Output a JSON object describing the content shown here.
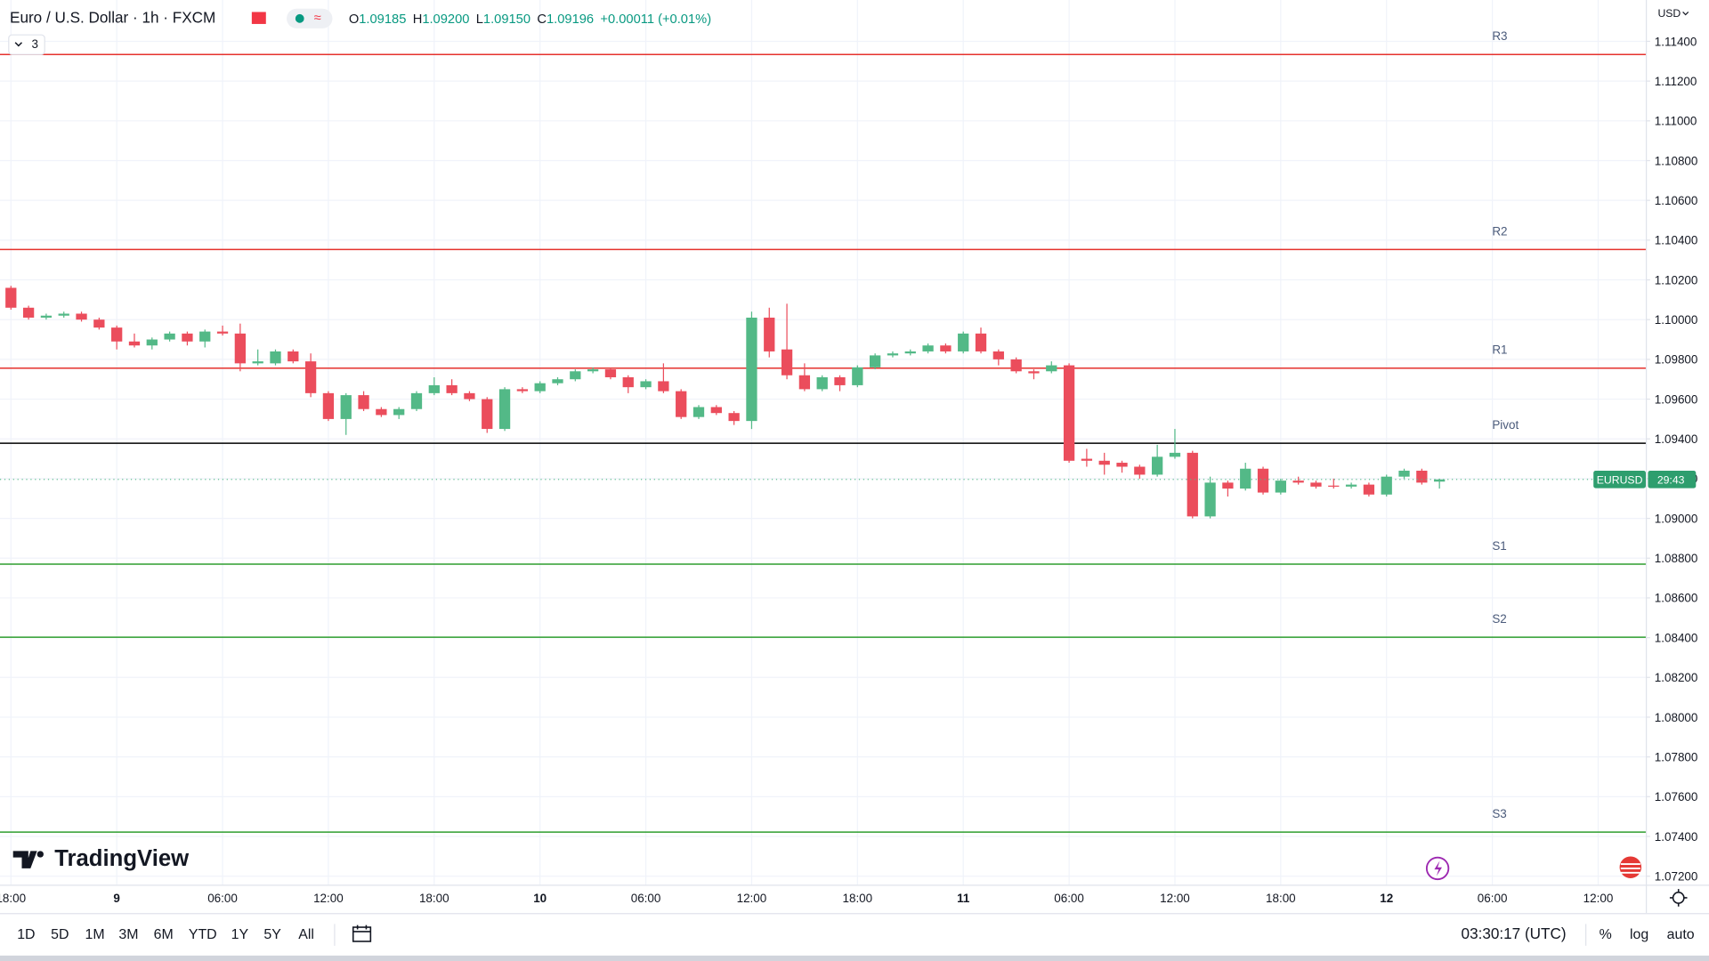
{
  "chart_data": {
    "type": "candlestick",
    "title": "Euro / U.S. Dollar · 1h · FXCM",
    "ohlc": [
      {
        "label": "O",
        "value": "1.09185"
      },
      {
        "label": "H",
        "value": "1.09200"
      },
      {
        "label": "L",
        "value": "1.09150"
      },
      {
        "label": "C",
        "value": "1.09196"
      }
    ],
    "change": "+0.00011 (+0.01%)",
    "up_color": "#53b987",
    "down_color": "#eb4d5c",
    "open": [
      1.1016,
      1.1006,
      1.1001,
      1.1002,
      1.1003,
      1.1,
      1.0996,
      1.0989,
      1.0987,
      1.099,
      1.0993,
      1.0989,
      1.0994,
      1.0993,
      1.0978,
      1.0978,
      1.0984,
      1.0979,
      1.0963,
      1.095,
      1.0962,
      1.0955,
      1.0952,
      1.0955,
      1.0963,
      1.0967,
      1.0963,
      1.096,
      1.0945,
      1.0965,
      1.0964,
      1.0968,
      1.097,
      1.0974,
      1.0975,
      1.0971,
      1.0966,
      1.0969,
      1.0964,
      1.0951,
      1.0956,
      1.0953,
      1.0949,
      1.1001,
      1.0985,
      1.0972,
      1.0965,
      1.0971,
      1.0967,
      1.0976,
      1.0982,
      1.0983,
      1.0984,
      1.0987,
      1.0984,
      1.0993,
      1.0984,
      1.098,
      1.0974,
      1.0974,
      1.0977,
      1.093,
      1.0929,
      1.0928,
      1.0926,
      1.0922,
      1.0931,
      1.0933,
      1.0901,
      1.0918,
      1.0915,
      1.0925,
      1.0913,
      1.0919,
      1.0918,
      1.09165,
      1.0916,
      1.0917,
      1.0912,
      1.0921,
      1.0924,
      1.09185
    ],
    "high": [
      1.1017,
      1.1007,
      1.1003,
      1.1004,
      1.1004,
      1.1001,
      1.0997,
      1.0993,
      1.0991,
      1.0994,
      1.0994,
      1.0995,
      1.0997,
      1.0998,
      1.0985,
      1.0985,
      1.0985,
      1.0983,
      1.0964,
      1.0963,
      1.0964,
      1.0956,
      1.0956,
      1.0964,
      1.0971,
      1.097,
      1.0964,
      1.0961,
      1.0966,
      1.0966,
      1.0969,
      1.0971,
      1.0975,
      1.0976,
      1.0976,
      1.0972,
      1.097,
      1.0978,
      1.0965,
      1.0957,
      1.0957,
      1.0954,
      1.1004,
      1.1006,
      1.1008,
      1.0978,
      1.0972,
      1.0972,
      1.0977,
      1.0983,
      1.0984,
      1.0985,
      1.0988,
      1.0988,
      1.0994,
      1.0996,
      1.0985,
      1.0981,
      1.0975,
      1.0979,
      1.0978,
      1.0935,
      1.0933,
      1.0929,
      1.0927,
      1.0937,
      1.0945,
      1.0934,
      1.0921,
      1.0919,
      1.0928,
      1.0926,
      1.092,
      1.0921,
      1.0919,
      1.092,
      1.0918,
      1.0918,
      1.0922,
      1.0925,
      1.0925,
      1.092
    ],
    "low": [
      1.1005,
      1.1,
      1.1,
      1.1001,
      1.0999,
      1.0995,
      1.0985,
      1.0986,
      1.0985,
      1.0989,
      1.0987,
      1.0986,
      1.0992,
      1.0974,
      1.0977,
      1.0977,
      1.0978,
      1.0961,
      1.0949,
      1.0942,
      1.0954,
      1.0951,
      1.095,
      1.0954,
      1.0962,
      1.0962,
      1.0959,
      1.0943,
      1.0944,
      1.0963,
      1.0963,
      1.0967,
      1.0969,
      1.0973,
      1.097,
      1.0963,
      1.0965,
      1.0963,
      1.095,
      1.095,
      1.0952,
      1.0947,
      1.0945,
      1.0981,
      1.097,
      1.0964,
      1.0964,
      1.0964,
      1.0966,
      1.0975,
      1.0981,
      1.0982,
      1.0983,
      1.0983,
      1.0983,
      1.0983,
      1.0977,
      1.0973,
      1.097,
      1.0973,
      1.0928,
      1.0926,
      1.0922,
      1.0923,
      1.092,
      1.0921,
      1.093,
      1.09,
      1.09,
      1.0911,
      1.0914,
      1.0912,
      1.0912,
      1.0917,
      1.0915,
      1.0915,
      1.0915,
      1.0911,
      1.0911,
      1.092,
      1.0917,
      1.0915
    ],
    "close": [
      1.1006,
      1.1001,
      1.1002,
      1.1003,
      1.1,
      1.0996,
      1.0989,
      1.0987,
      1.099,
      1.0993,
      1.0989,
      1.0994,
      1.0993,
      1.0978,
      1.0979,
      1.0984,
      1.0979,
      1.0963,
      1.095,
      1.0962,
      1.0955,
      1.0952,
      1.0955,
      1.0963,
      1.0967,
      1.0963,
      1.096,
      1.0945,
      1.0965,
      1.0964,
      1.0968,
      1.097,
      1.0974,
      1.0975,
      1.0971,
      1.0966,
      1.0969,
      1.0964,
      1.0951,
      1.0956,
      1.0953,
      1.0949,
      1.1001,
      1.0984,
      1.0972,
      1.0965,
      1.0971,
      1.0967,
      1.0976,
      1.0982,
      1.0983,
      1.0984,
      1.0987,
      1.0984,
      1.0993,
      1.0984,
      1.098,
      1.0974,
      1.0973,
      1.0977,
      1.0929,
      1.0929,
      1.0927,
      1.0926,
      1.0922,
      1.0931,
      1.0933,
      1.0901,
      1.0918,
      1.0915,
      1.0925,
      1.0913,
      1.0919,
      1.0918,
      1.0916,
      1.0916,
      1.0917,
      1.0912,
      1.0921,
      1.0924,
      1.0918,
      1.09196
    ],
    "levels": [
      {
        "name": "R3",
        "value": 1.11334,
        "color": "#e5322d"
      },
      {
        "name": "R2",
        "value": 1.10353,
        "color": "#e5322d"
      },
      {
        "name": "R1",
        "value": 1.09756,
        "color": "#e5322d"
      },
      {
        "name": "Pivot",
        "value": 1.09378,
        "color": "#000000"
      },
      {
        "name": "S1",
        "value": 1.0877,
        "color": "#2e9e2e"
      },
      {
        "name": "S2",
        "value": 1.08402,
        "color": "#2e9e2e"
      },
      {
        "name": "S3",
        "value": 1.07422,
        "color": "#2e9e2e"
      }
    ],
    "xlim": [
      -0.62,
      92.7
    ],
    "xticks": [
      {
        "value": 0,
        "label": "18:00"
      },
      {
        "value": 6,
        "label": "9"
      },
      {
        "value": 12,
        "label": "06:00"
      },
      {
        "value": 18,
        "label": "12:00"
      },
      {
        "value": 24,
        "label": "18:00"
      },
      {
        "value": 30,
        "label": "10"
      },
      {
        "value": 36,
        "label": "06:00"
      },
      {
        "value": 42,
        "label": "12:00"
      },
      {
        "value": 48,
        "label": "18:00"
      },
      {
        "value": 54,
        "label": "11"
      },
      {
        "value": 60,
        "label": "06:00"
      },
      {
        "value": 66,
        "label": "12:00"
      },
      {
        "value": 72,
        "label": "18:00"
      },
      {
        "value": 78,
        "label": "12"
      },
      {
        "value": 84,
        "label": "06:00"
      },
      {
        "value": 90,
        "label": "12:00"
      }
    ],
    "ylim": [
      1.07157,
      1.11608
    ],
    "yticks": [
      {
        "value": 1.072,
        "label": "1.07200"
      },
      {
        "value": 1.074,
        "label": "1.07400"
      },
      {
        "value": 1.076,
        "label": "1.07600"
      },
      {
        "value": 1.078,
        "label": "1.07800"
      },
      {
        "value": 1.08,
        "label": "1.08000"
      },
      {
        "value": 1.082,
        "label": "1.08200"
      },
      {
        "value": 1.084,
        "label": "1.08400"
      },
      {
        "value": 1.086,
        "label": "1.08600"
      },
      {
        "value": 1.088,
        "label": "1.08800"
      },
      {
        "value": 1.09,
        "label": "1.09000"
      },
      {
        "value": 1.092,
        "label": "1.09200"
      },
      {
        "value": 1.094,
        "label": "1.09400"
      },
      {
        "value": 1.096,
        "label": "1.09600"
      },
      {
        "value": 1.098,
        "label": "1.09800"
      },
      {
        "value": 1.1,
        "label": "1.10000"
      },
      {
        "value": 1.102,
        "label": "1.10200"
      },
      {
        "value": 1.104,
        "label": "1.10400"
      },
      {
        "value": 1.106,
        "label": "1.10600"
      },
      {
        "value": 1.108,
        "label": "1.10800"
      },
      {
        "value": 1.11,
        "label": "1.11000"
      },
      {
        "value": 1.112,
        "label": "1.11200"
      },
      {
        "value": 1.114,
        "label": "1.11400"
      }
    ],
    "grid": true
  },
  "ui": {
    "indicator_count": "3",
    "currency": "USD",
    "brand": "TradingView",
    "symbol": "EURUSD",
    "countdown": "29:43",
    "ranges": [
      "1D",
      "5D",
      "1M",
      "3M",
      "6M",
      "YTD",
      "1Y",
      "5Y",
      "All"
    ],
    "clock": "03:30:17 (UTC)",
    "scale_buttons": [
      "%",
      "log",
      "auto"
    ]
  }
}
